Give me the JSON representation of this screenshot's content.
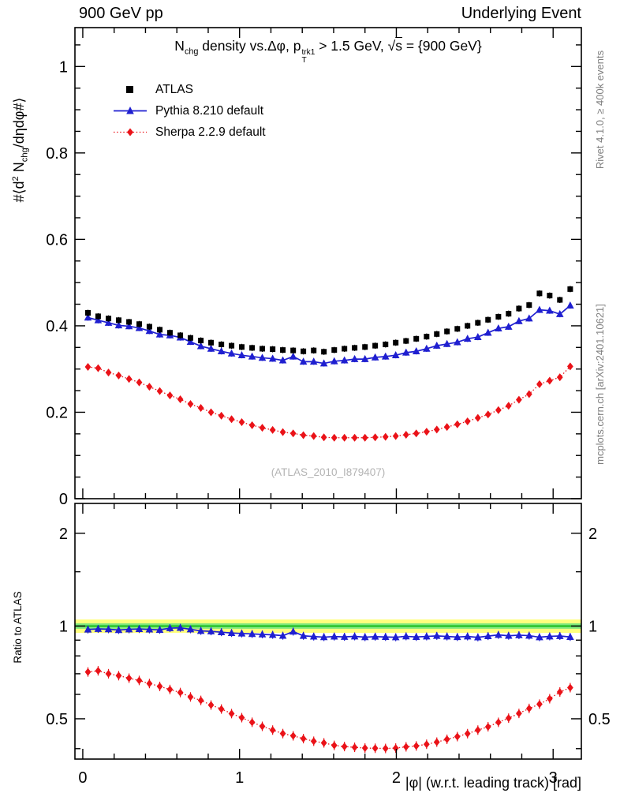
{
  "header": {
    "left": "900 GeV pp",
    "right": "Underlying Event"
  },
  "title": {
    "n": "N",
    "chg": "chg",
    "mid": " density vs.Δφ, ",
    "p": "p",
    "trk": "trk1",
    "tsub": "T",
    "gt": " > 1.5 GeV, ",
    "sqrt": "√",
    "s": "s",
    "tail": " = {900 GeV}"
  },
  "ylabel": {
    "a": "#⟨d",
    "b": "2",
    "c": " N",
    "d": "chg",
    "e": "/dηdφ#⟩"
  },
  "ratio_ylabel": "Ratio to ATLAS",
  "xlabel": "|φ| (w.r.t. leading track) [rad]",
  "watermark": "(ATLAS_2010_I879407)",
  "side_texts": {
    "top": "Rivet 4.1.0, ≥ 400k events",
    "bottom": "mcplots.cern.ch [arXiv:2401.10621]"
  },
  "colors": {
    "atlas": "#000000",
    "pythia": "#1f1fd0",
    "sherpa": "#ea1218",
    "band_yellow": "#ffff7d",
    "band_green": "#7de87d",
    "band_line": "#00b000",
    "frame": "#000000",
    "gray_text": "#808080",
    "watermark": "#b4b4b4"
  },
  "chart_data": {
    "type": "scatter",
    "title": "Nchg density vs.Δφ, pT^trk1 > 1.5 GeV, √s = {900 GeV}",
    "xlabel": "|φ| (w.r.t. leading track) [rad]",
    "ylabel": "#⟨d2 Nchg/dηdφ#⟩",
    "ratio_label": "Ratio to ATLAS",
    "legend_position": "top-left",
    "x_axis": {
      "lim": [
        -0.05,
        3.18
      ],
      "ticks": [
        0,
        1,
        2,
        3
      ],
      "minor_step": 0.2
    },
    "main_axis": {
      "ylim": [
        0,
        1.09
      ],
      "yticks": [
        0,
        0.2,
        0.4,
        0.6,
        0.8,
        1
      ],
      "minor_step": 0.05
    },
    "ratio_axis": {
      "scale": "log",
      "lim": [
        0.37,
        2.5
      ],
      "ticks": [
        0.5,
        1,
        2
      ],
      "minors": [
        0.4,
        0.6,
        0.7,
        0.8,
        0.9,
        1.5
      ],
      "bands": {
        "yellow": [
          0.95,
          1.05
        ],
        "green": [
          0.98,
          1.02
        ]
      },
      "ratio_reference": "ATLAS"
    },
    "x": [
      0.033,
      0.098,
      0.164,
      0.229,
      0.295,
      0.36,
      0.425,
      0.491,
      0.556,
      0.622,
      0.687,
      0.753,
      0.818,
      0.884,
      0.949,
      1.014,
      1.08,
      1.145,
      1.211,
      1.276,
      1.342,
      1.407,
      1.473,
      1.538,
      1.604,
      1.669,
      1.734,
      1.8,
      1.865,
      1.931,
      1.996,
      2.062,
      2.127,
      2.193,
      2.258,
      2.323,
      2.389,
      2.454,
      2.52,
      2.585,
      2.651,
      2.716,
      2.782,
      2.847,
      2.913,
      2.978,
      3.043,
      3.109
    ],
    "series": [
      {
        "name": "ATLAS",
        "marker": "square",
        "color": "#000000",
        "line": "none",
        "values": [
          0.43,
          0.422,
          0.417,
          0.413,
          0.409,
          0.404,
          0.398,
          0.391,
          0.384,
          0.378,
          0.372,
          0.366,
          0.361,
          0.357,
          0.354,
          0.351,
          0.349,
          0.347,
          0.346,
          0.344,
          0.343,
          0.341,
          0.343,
          0.34,
          0.344,
          0.347,
          0.349,
          0.351,
          0.354,
          0.357,
          0.361,
          0.365,
          0.37,
          0.375,
          0.381,
          0.387,
          0.393,
          0.4,
          0.407,
          0.414,
          0.421,
          0.428,
          0.44,
          0.448,
          0.475,
          0.47,
          0.46,
          0.485
        ]
      },
      {
        "name": "Pythia 8.210 default",
        "marker": "triangle",
        "color": "#1f1fd0",
        "line": "solid",
        "values": [
          0.419,
          0.413,
          0.407,
          0.401,
          0.399,
          0.395,
          0.388,
          0.38,
          0.378,
          0.373,
          0.363,
          0.353,
          0.347,
          0.341,
          0.336,
          0.332,
          0.329,
          0.326,
          0.324,
          0.32,
          0.329,
          0.317,
          0.317,
          0.313,
          0.318,
          0.32,
          0.323,
          0.323,
          0.327,
          0.329,
          0.332,
          0.338,
          0.341,
          0.347,
          0.354,
          0.358,
          0.362,
          0.37,
          0.374,
          0.384,
          0.394,
          0.398,
          0.411,
          0.417,
          0.437,
          0.435,
          0.427,
          0.447
        ]
      },
      {
        "name": "Sherpa 2.2.9 default",
        "marker": "diamond",
        "color": "#ea1218",
        "line": "dotted",
        "values": [
          0.305,
          0.302,
          0.292,
          0.285,
          0.277,
          0.269,
          0.259,
          0.249,
          0.239,
          0.23,
          0.219,
          0.21,
          0.2,
          0.192,
          0.184,
          0.177,
          0.17,
          0.164,
          0.159,
          0.154,
          0.151,
          0.147,
          0.145,
          0.142,
          0.141,
          0.141,
          0.141,
          0.141,
          0.142,
          0.143,
          0.145,
          0.148,
          0.151,
          0.155,
          0.16,
          0.166,
          0.172,
          0.179,
          0.187,
          0.195,
          0.205,
          0.215,
          0.229,
          0.242,
          0.265,
          0.273,
          0.281,
          0.306
        ]
      }
    ]
  }
}
